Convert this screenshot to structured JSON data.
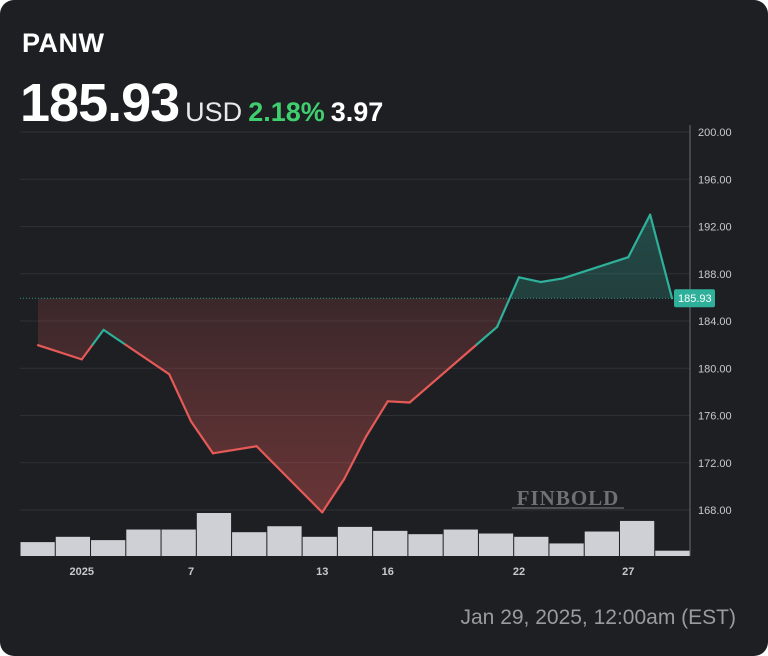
{
  "header": {
    "ticker": "PANW",
    "price": "185.93",
    "currency": "USD",
    "change_pct": "2.18%",
    "change_abs": "3.97"
  },
  "timestamp": "Jan 29, 2025, 12:00am (EST)",
  "watermark": "FINBOLD",
  "colors": {
    "background": "#1e1f23",
    "up": "#2eb09a",
    "down": "#e55a57",
    "change_text": "#3fcf6e",
    "volume": "#cfcfd6",
    "grid": "#2f3036",
    "axis_text": "#c8c9cc"
  },
  "chart_data": {
    "type": "line",
    "x": [
      "2024-12-31",
      "2025-01-02",
      "2025-01-03",
      "2025-01-06",
      "2025-01-07",
      "2025-01-08",
      "2025-01-10",
      "2025-01-13",
      "2025-01-14",
      "2025-01-15",
      "2025-01-16",
      "2025-01-17",
      "2025-01-21",
      "2025-01-22",
      "2025-01-23",
      "2025-01-24",
      "2025-01-27",
      "2025-01-28",
      "2025-01-29"
    ],
    "x_tick_labels": [
      {
        "date": "2025-01-02",
        "label": "2025"
      },
      {
        "date": "2025-01-07",
        "label": "7"
      },
      {
        "date": "2025-01-13",
        "label": "13"
      },
      {
        "date": "2025-01-16",
        "label": "16"
      },
      {
        "date": "2025-01-22",
        "label": "22"
      },
      {
        "date": "2025-01-27",
        "label": "27"
      }
    ],
    "series": [
      {
        "values": [
          181.95,
          180.75,
          183.25,
          179.5,
          175.5,
          172.8,
          173.4,
          167.8,
          170.6,
          174.2,
          177.2,
          177.1,
          183.5,
          187.7,
          187.3,
          187.6,
          189.4,
          193.0,
          185.93
        ]
      }
    ],
    "volume": [
      2.1,
      2.9,
      2.4,
      4.0,
      4.0,
      6.5,
      3.6,
      4.5,
      2.9,
      4.4,
      3.8,
      3.3,
      4.0,
      3.4,
      2.9,
      1.9,
      3.7,
      5.3,
      0.8
    ],
    "y_ticks": [
      "168.00",
      "172.00",
      "176.00",
      "180.00",
      "184.00",
      "188.00",
      "192.00",
      "196.00",
      "200.00"
    ],
    "ylim": [
      165.8,
      200
    ],
    "last_price_label": "185.93",
    "grid": true
  }
}
